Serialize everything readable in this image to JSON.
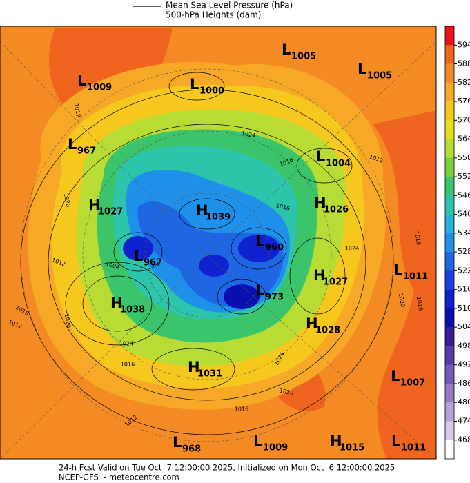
{
  "header": {
    "legend_lines": [
      "Mean Sea Level Pressure (hPa)",
      "500-hPa Heights (dam)"
    ]
  },
  "map": {
    "centers": [
      {
        "symbol": "L",
        "value": 1009
      },
      {
        "symbol": "L",
        "value": 1000
      },
      {
        "symbol": "L",
        "value": 1005
      },
      {
        "symbol": "L",
        "value": 1005
      },
      {
        "symbol": "L",
        "value": 967
      },
      {
        "symbol": "L",
        "value": 1004
      },
      {
        "symbol": "H",
        "value": 1027
      },
      {
        "symbol": "H",
        "value": 1039
      },
      {
        "symbol": "H",
        "value": 1026
      },
      {
        "symbol": "L",
        "value": 960
      },
      {
        "symbol": "L",
        "value": 967
      },
      {
        "symbol": "H",
        "value": 1027
      },
      {
        "symbol": "L",
        "value": 1011
      },
      {
        "symbol": "L",
        "value": 973
      },
      {
        "symbol": "H",
        "value": 1038
      },
      {
        "symbol": "H",
        "value": 1028
      },
      {
        "symbol": "H",
        "value": 1031
      },
      {
        "symbol": "L",
        "value": 1007
      },
      {
        "symbol": "L",
        "value": 968
      },
      {
        "symbol": "L",
        "value": 1009
      },
      {
        "symbol": "H",
        "value": 1015
      },
      {
        "symbol": "L",
        "value": 1011
      }
    ],
    "isobar_labels": [
      1012,
      1024,
      1016,
      1012,
      1020,
      1016,
      1024,
      1016,
      1012,
      1004,
      1020,
      1016,
      1016,
      1020,
      1012,
      1024,
      1016,
      1024,
      1020,
      1016,
      1012
    ]
  },
  "colorbar": {
    "levels": [
      594,
      588,
      582,
      576,
      570,
      564,
      558,
      552,
      546,
      540,
      534,
      528,
      522,
      516,
      510,
      504,
      498,
      492,
      486,
      480,
      474,
      468
    ],
    "colors": [
      "#e8141c",
      "#ef6520",
      "#f48a24",
      "#f6a826",
      "#f6c81e",
      "#e6e01c",
      "#b8dc34",
      "#78d03c",
      "#3cc46a",
      "#2cc4aa",
      "#22b4da",
      "#1e90ea",
      "#1e66e2",
      "#1a40e0",
      "#1022d0",
      "#0a10b0",
      "#3a1a9a",
      "#5a3aa8",
      "#7a5ab8",
      "#9a7ac8",
      "#b8a0d8",
      "#d8c8ea",
      "#ffffff"
    ]
  },
  "footer": {
    "lines": [
      "24-h Fcst Valid on Tue Oct  7 12:00:00 2025, Initialized on Mon Oct  6 12:00:00 2025",
      "NCEP-GFS  - meteocentre.com"
    ]
  }
}
